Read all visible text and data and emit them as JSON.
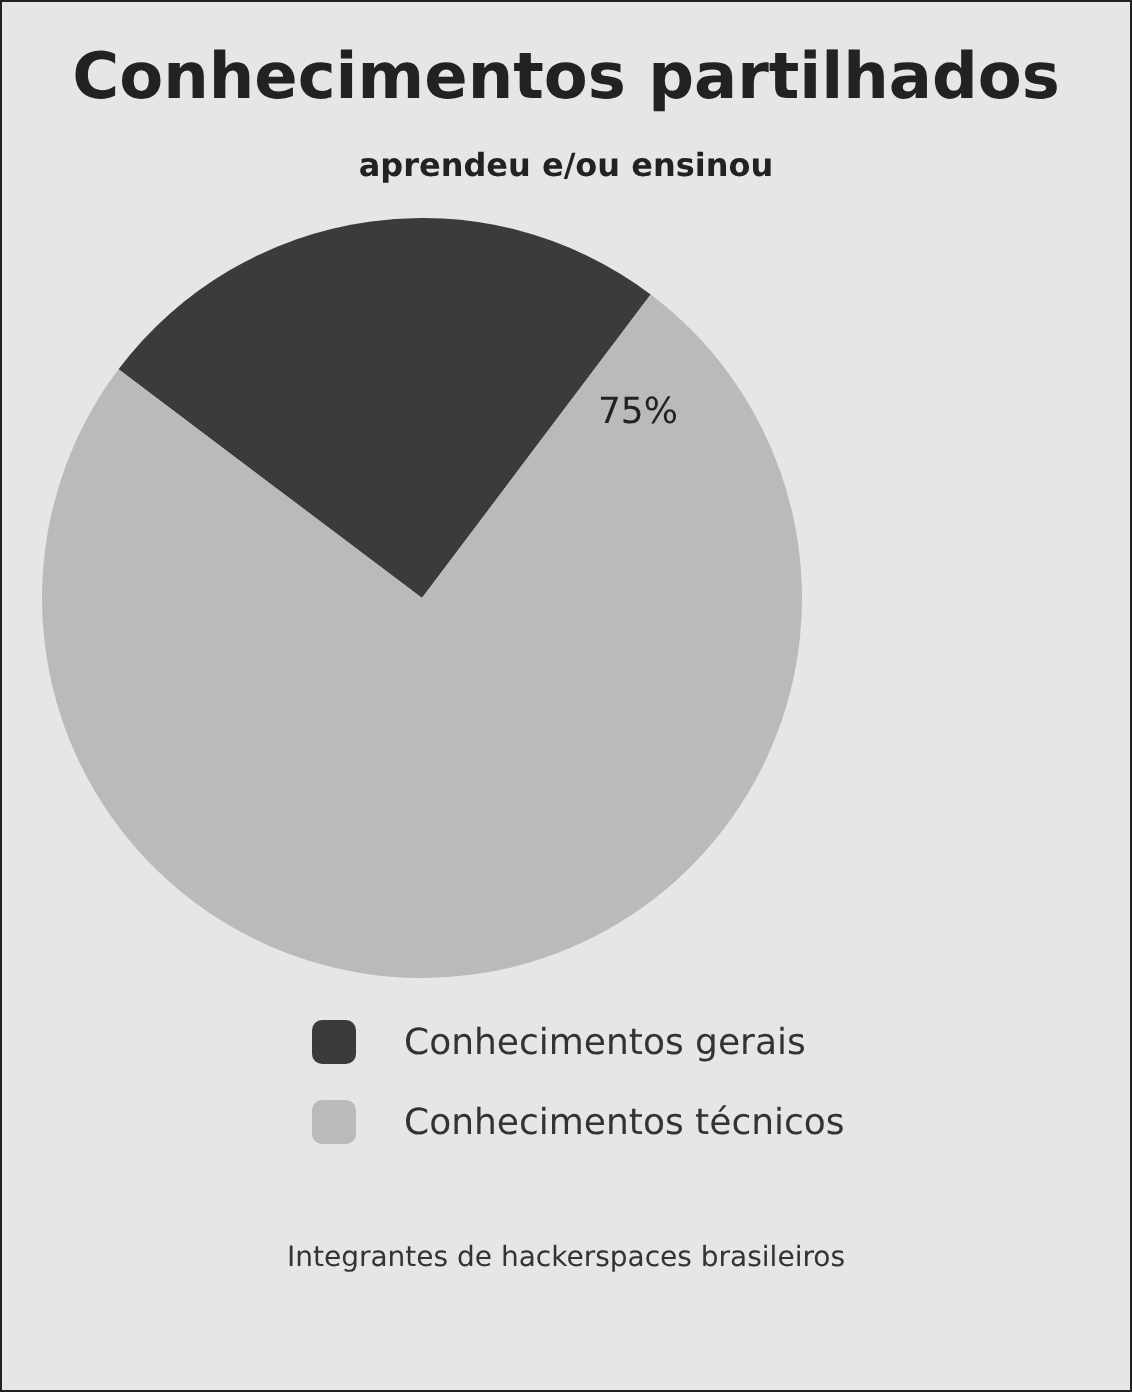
{
  "chart_data": {
    "type": "pie",
    "title": "Conhecimentos partilhados",
    "subtitle": "aprendeu e/ou ensinou",
    "categories": [
      "Conhecimentos gerais",
      "Conhecimentos técnicos"
    ],
    "values": [
      25,
      75
    ],
    "colors": [
      "#3b3b3b",
      "#bababa"
    ],
    "value_labels": [
      null,
      "75%"
    ],
    "legend": "bottom",
    "annotations": [
      "Integrantes de hackerspaces brasileiros"
    ]
  }
}
